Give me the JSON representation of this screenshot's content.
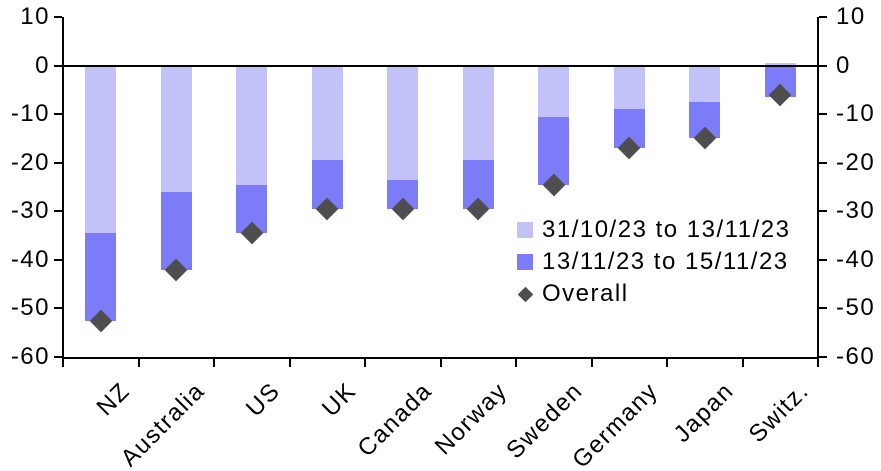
{
  "chart_data": {
    "type": "bar",
    "stacked": true,
    "orientation": "vertical-negative",
    "title": "",
    "categories": [
      "NZ",
      "Australia",
      "US",
      "UK",
      "Canada",
      "Norway",
      "Sweden",
      "Germany",
      "Japan",
      "Switz."
    ],
    "series": [
      {
        "name": "31/10/23 to 13/11/23",
        "color": "#c2c1f8",
        "values": [
          -34.5,
          -26,
          -24.5,
          -19.5,
          -23.5,
          -19.5,
          -10.5,
          -9,
          -7.5,
          0.5
        ]
      },
      {
        "name": "13/11/23 to 15/11/23",
        "color": "#7d7cf8",
        "values": [
          -18,
          -16,
          -10,
          -10,
          -6,
          -10,
          -14,
          -8,
          -7.5,
          -6.5
        ]
      }
    ],
    "overall_markers": {
      "name": "Overall",
      "shape": "diamond",
      "color": "#4e4e4e",
      "values": [
        -52.5,
        -42,
        -34.5,
        -29.5,
        -29.5,
        -29.5,
        -24.5,
        -17,
        -15,
        -6
      ]
    },
    "ylim": [
      -60,
      10
    ],
    "yticks": [
      10,
      0,
      -10,
      -20,
      -30,
      -40,
      -50,
      -60
    ],
    "y_axis_sides": "both",
    "zero_line": true,
    "grid": false,
    "legend_position": "inside-right",
    "axis_color": "#000000",
    "background_color": "#ffffff"
  }
}
